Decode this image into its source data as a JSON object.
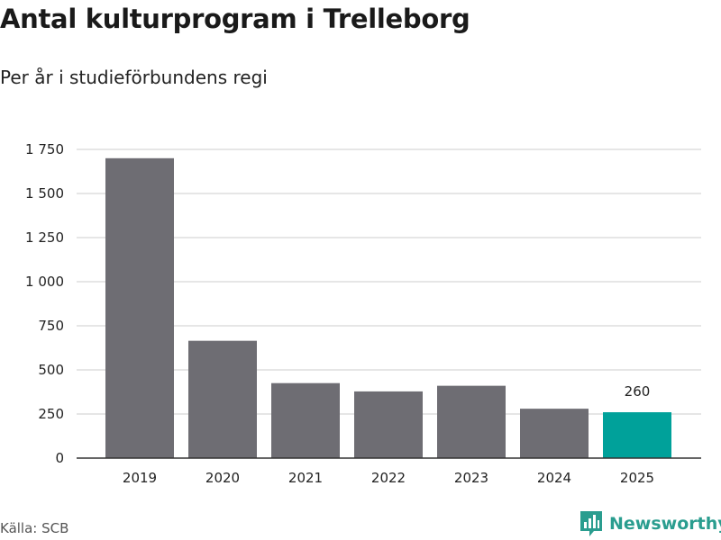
{
  "header": {
    "title": "Antal kulturprogram i Trelleborg",
    "subtitle": "Per år i studieförbundens regi"
  },
  "footer": {
    "source": "Källa: SCB",
    "brand": "Newsworthy"
  },
  "colors": {
    "bar": "#6e6d73",
    "highlight": "#00a19a",
    "grid": "#dddddd",
    "axis": "#333333",
    "brand": "#2a9d8f"
  },
  "chart_data": {
    "type": "bar",
    "title": "Antal kulturprogram i Trelleborg",
    "subtitle": "Per år i studieförbundens regi",
    "categories": [
      "2019",
      "2020",
      "2021",
      "2022",
      "2023",
      "2024",
      "2025"
    ],
    "values": [
      1700,
      665,
      425,
      378,
      410,
      280,
      260
    ],
    "highlight_index": 6,
    "data_labels": [
      {
        "index": 6,
        "text": "260"
      }
    ],
    "yticks": [
      0,
      250,
      500,
      750,
      1000,
      1250,
      1500,
      1750
    ],
    "ytick_labels": [
      "0",
      "250",
      "500",
      "750",
      "1 000",
      "1 250",
      "1 500",
      "1 750"
    ],
    "ylim": [
      0,
      1750
    ],
    "xlabel": "",
    "ylabel": "",
    "grid": true,
    "legend": "none"
  }
}
